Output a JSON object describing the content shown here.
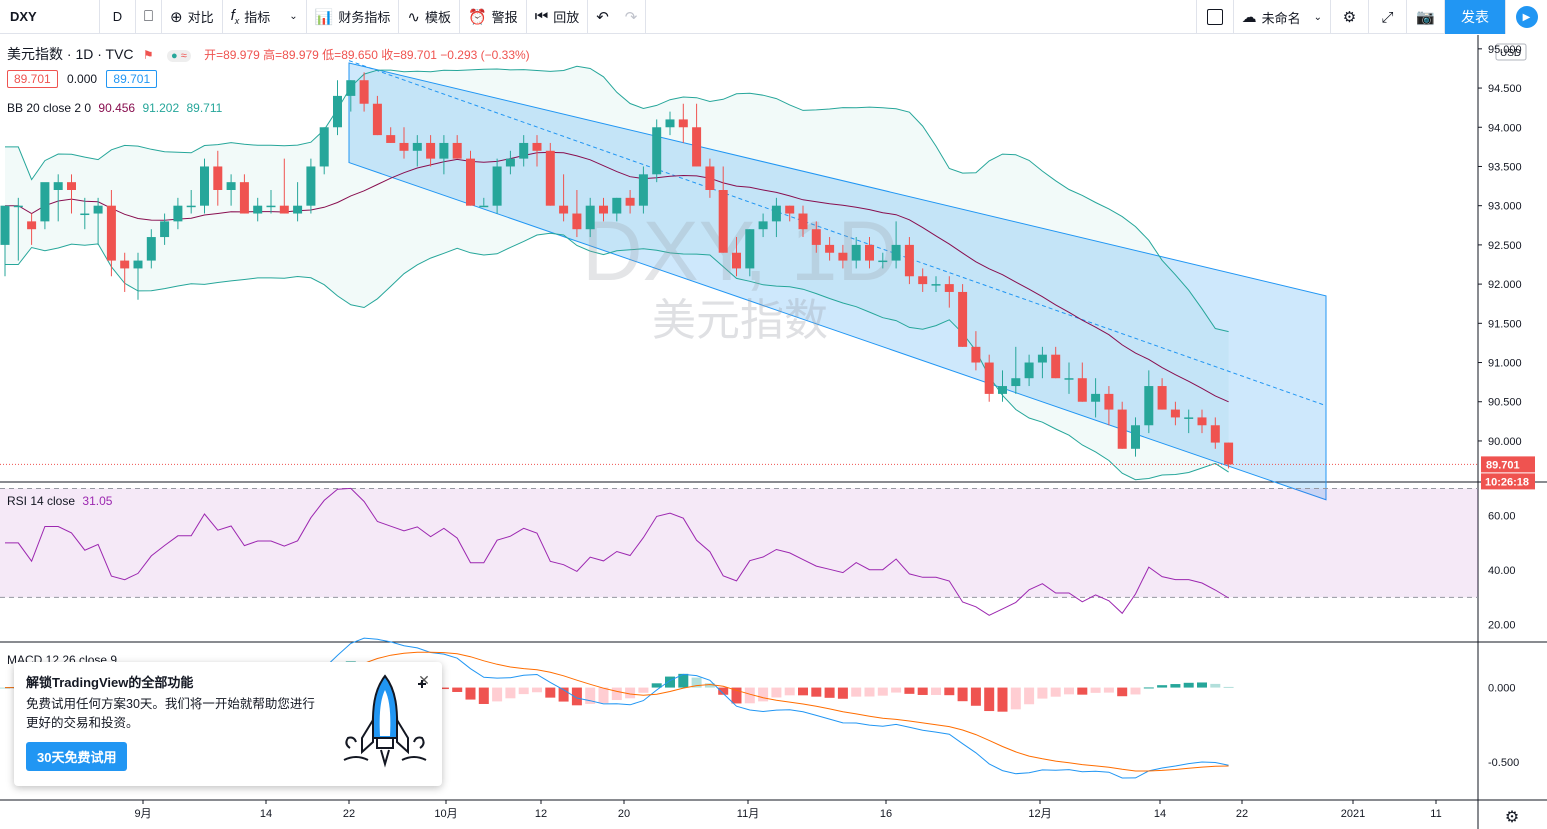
{
  "toolbar": {
    "symbol": "DXY",
    "resolution": "D",
    "compare": "对比",
    "indicators": "指标",
    "financials": "财务指标",
    "templates": "模板",
    "alert": "警报",
    "replay": "回放",
    "layout_name": "未命名",
    "publish": "发表"
  },
  "legend": {
    "title": "美元指数 · 1D · TVC",
    "ohlc": "开=89.979 高=89.979 低=89.650 收=89.701 −0.293 (−0.33%)",
    "price_box": "89.701",
    "spread": "0.000",
    "price_box2": "89.701",
    "bb": "BB 20 close 2 0",
    "bb_basis": "90.456",
    "bb_upper": "91.202",
    "bb_lower": "89.711",
    "rsi": "RSI 14 close",
    "rsi_value": "31.05",
    "macd": "MACD 12 26 close 9"
  },
  "chart": {
    "currency": "USD",
    "last_price": "89.701",
    "countdown": "10:26:18",
    "watermark_symbol": "DXY, 1D",
    "watermark_name": "美元指数",
    "price_ticks": [
      "95.000",
      "94.500",
      "94.000",
      "93.500",
      "93.000",
      "92.500",
      "92.000",
      "91.500",
      "91.000",
      "90.500",
      "90.000"
    ],
    "rsi_ticks": [
      "60.00",
      "40.00",
      "20.00"
    ],
    "macd_ticks": [
      "0.000",
      "-0.500"
    ],
    "time_ticks": [
      "9月",
      "14",
      "22",
      "10月",
      "12",
      "20",
      "11月",
      "16",
      "12月",
      "14",
      "22",
      "2021",
      "11"
    ],
    "colors": {
      "up": "#26a69a",
      "down": "#ef5350",
      "channel": "#2196f3",
      "bb": "#26a69a",
      "basis": "#880e4f",
      "rsi": "#9c27b0",
      "macd": "#2196f3",
      "signal": "#ff6d00"
    }
  },
  "chart_data": {
    "type": "candlestick",
    "symbol": "DXY",
    "interval": "1D",
    "ylim": [
      89.4,
      95.1
    ],
    "candles_ohlc": [
      [
        92.5,
        92.6,
        92.1,
        93.0
      ],
      [
        93.0,
        93.1,
        92.3,
        93.0
      ],
      [
        92.8,
        92.9,
        92.5,
        92.7
      ],
      [
        92.8,
        93.2,
        92.7,
        93.3
      ],
      [
        93.2,
        93.4,
        92.8,
        93.3
      ],
      [
        93.3,
        93.4,
        92.9,
        93.2
      ],
      [
        92.9,
        93.1,
        92.7,
        92.9
      ],
      [
        92.9,
        93.1,
        92.5,
        93.0
      ],
      [
        93.0,
        93.2,
        92.1,
        92.3
      ],
      [
        92.3,
        92.4,
        91.9,
        92.2
      ],
      [
        92.2,
        92.4,
        91.8,
        92.3
      ],
      [
        92.3,
        92.7,
        92.2,
        92.6
      ],
      [
        92.6,
        92.9,
        92.5,
        92.8
      ],
      [
        92.8,
        93.1,
        92.7,
        93.0
      ],
      [
        93.0,
        93.2,
        92.9,
        93.0
      ],
      [
        93.0,
        93.6,
        92.9,
        93.5
      ],
      [
        93.5,
        93.7,
        93.0,
        93.2
      ],
      [
        93.2,
        93.4,
        93.0,
        93.3
      ],
      [
        93.3,
        93.4,
        92.9,
        92.9
      ],
      [
        92.9,
        93.1,
        92.8,
        93.0
      ],
      [
        93.0,
        93.2,
        92.9,
        93.0
      ],
      [
        93.0,
        93.6,
        92.9,
        92.9
      ],
      [
        92.9,
        93.3,
        92.8,
        93.0
      ],
      [
        93.0,
        93.6,
        92.9,
        93.5
      ],
      [
        93.5,
        94.0,
        93.4,
        94.0
      ],
      [
        94.0,
        94.6,
        93.9,
        94.4
      ],
      [
        94.4,
        94.6,
        94.2,
        94.6
      ],
      [
        94.6,
        94.7,
        94.2,
        94.3
      ],
      [
        94.3,
        94.4,
        93.9,
        93.9
      ],
      [
        93.9,
        94.0,
        93.8,
        93.8
      ],
      [
        93.8,
        94.0,
        93.6,
        93.7
      ],
      [
        93.7,
        93.9,
        93.5,
        93.8
      ],
      [
        93.8,
        93.9,
        93.5,
        93.6
      ],
      [
        93.6,
        93.9,
        93.4,
        93.8
      ],
      [
        93.8,
        93.9,
        93.6,
        93.6
      ],
      [
        93.6,
        93.7,
        93.0,
        93.0
      ],
      [
        93.0,
        93.1,
        93.0,
        93.0
      ],
      [
        93.0,
        93.6,
        92.9,
        93.5
      ],
      [
        93.5,
        93.7,
        93.4,
        93.6
      ],
      [
        93.6,
        93.9,
        93.5,
        93.8
      ],
      [
        93.8,
        93.9,
        93.5,
        93.7
      ],
      [
        93.7,
        93.8,
        93.0,
        93.0
      ],
      [
        93.0,
        93.4,
        92.8,
        92.9
      ],
      [
        92.9,
        93.2,
        92.6,
        92.7
      ],
      [
        92.7,
        93.1,
        92.6,
        93.0
      ],
      [
        93.0,
        93.1,
        92.8,
        92.9
      ],
      [
        92.9,
        93.1,
        92.8,
        93.1
      ],
      [
        93.1,
        93.2,
        92.9,
        93.0
      ],
      [
        93.0,
        93.5,
        92.9,
        93.4
      ],
      [
        93.4,
        94.1,
        93.3,
        94.0
      ],
      [
        94.0,
        94.2,
        93.9,
        94.1
      ],
      [
        94.1,
        94.3,
        93.8,
        94.0
      ],
      [
        94.0,
        94.3,
        93.5,
        93.5
      ],
      [
        93.5,
        93.6,
        93.1,
        93.2
      ],
      [
        93.2,
        93.5,
        92.4,
        92.4
      ],
      [
        92.4,
        92.6,
        92.1,
        92.2
      ],
      [
        92.2,
        92.7,
        92.1,
        92.7
      ],
      [
        92.7,
        92.9,
        92.6,
        92.8
      ],
      [
        92.8,
        93.1,
        92.6,
        93.0
      ],
      [
        93.0,
        93.0,
        92.8,
        92.9
      ],
      [
        92.9,
        93.0,
        92.6,
        92.7
      ],
      [
        92.7,
        92.8,
        92.4,
        92.5
      ],
      [
        92.5,
        92.6,
        92.3,
        92.4
      ],
      [
        92.4,
        92.5,
        92.2,
        92.3
      ],
      [
        92.3,
        92.6,
        92.2,
        92.5
      ],
      [
        92.5,
        92.6,
        92.2,
        92.3
      ],
      [
        92.3,
        92.4,
        92.2,
        92.3
      ],
      [
        92.3,
        92.8,
        92.2,
        92.5
      ],
      [
        92.5,
        92.6,
        92.0,
        92.1
      ],
      [
        92.1,
        92.2,
        91.9,
        92.0
      ],
      [
        92.0,
        92.1,
        91.9,
        92.0
      ],
      [
        92.0,
        92.1,
        91.7,
        91.9
      ],
      [
        91.9,
        92.0,
        91.2,
        91.2
      ],
      [
        91.2,
        91.4,
        90.9,
        91.0
      ],
      [
        91.0,
        91.1,
        90.5,
        90.6
      ],
      [
        90.6,
        90.9,
        90.5,
        90.7
      ],
      [
        90.7,
        91.2,
        90.6,
        90.8
      ],
      [
        90.8,
        91.1,
        90.7,
        91.0
      ],
      [
        91.0,
        91.2,
        90.8,
        91.1
      ],
      [
        91.1,
        91.2,
        90.8,
        90.8
      ],
      [
        90.8,
        91.0,
        90.6,
        90.8
      ],
      [
        90.8,
        91.0,
        90.5,
        90.5
      ],
      [
        90.5,
        90.8,
        90.3,
        90.6
      ],
      [
        90.6,
        90.7,
        90.2,
        90.4
      ],
      [
        90.4,
        90.5,
        89.9,
        89.9
      ],
      [
        89.9,
        90.3,
        89.8,
        90.2
      ],
      [
        90.2,
        90.9,
        90.1,
        90.7
      ],
      [
        90.7,
        90.8,
        90.4,
        90.4
      ],
      [
        90.4,
        90.5,
        90.2,
        90.3
      ],
      [
        90.3,
        90.4,
        90.1,
        90.3
      ],
      [
        90.3,
        90.4,
        90.1,
        90.2
      ],
      [
        90.2,
        90.3,
        89.9,
        89.979
      ],
      [
        89.979,
        89.979,
        89.65,
        89.701
      ]
    ]
  }
}
